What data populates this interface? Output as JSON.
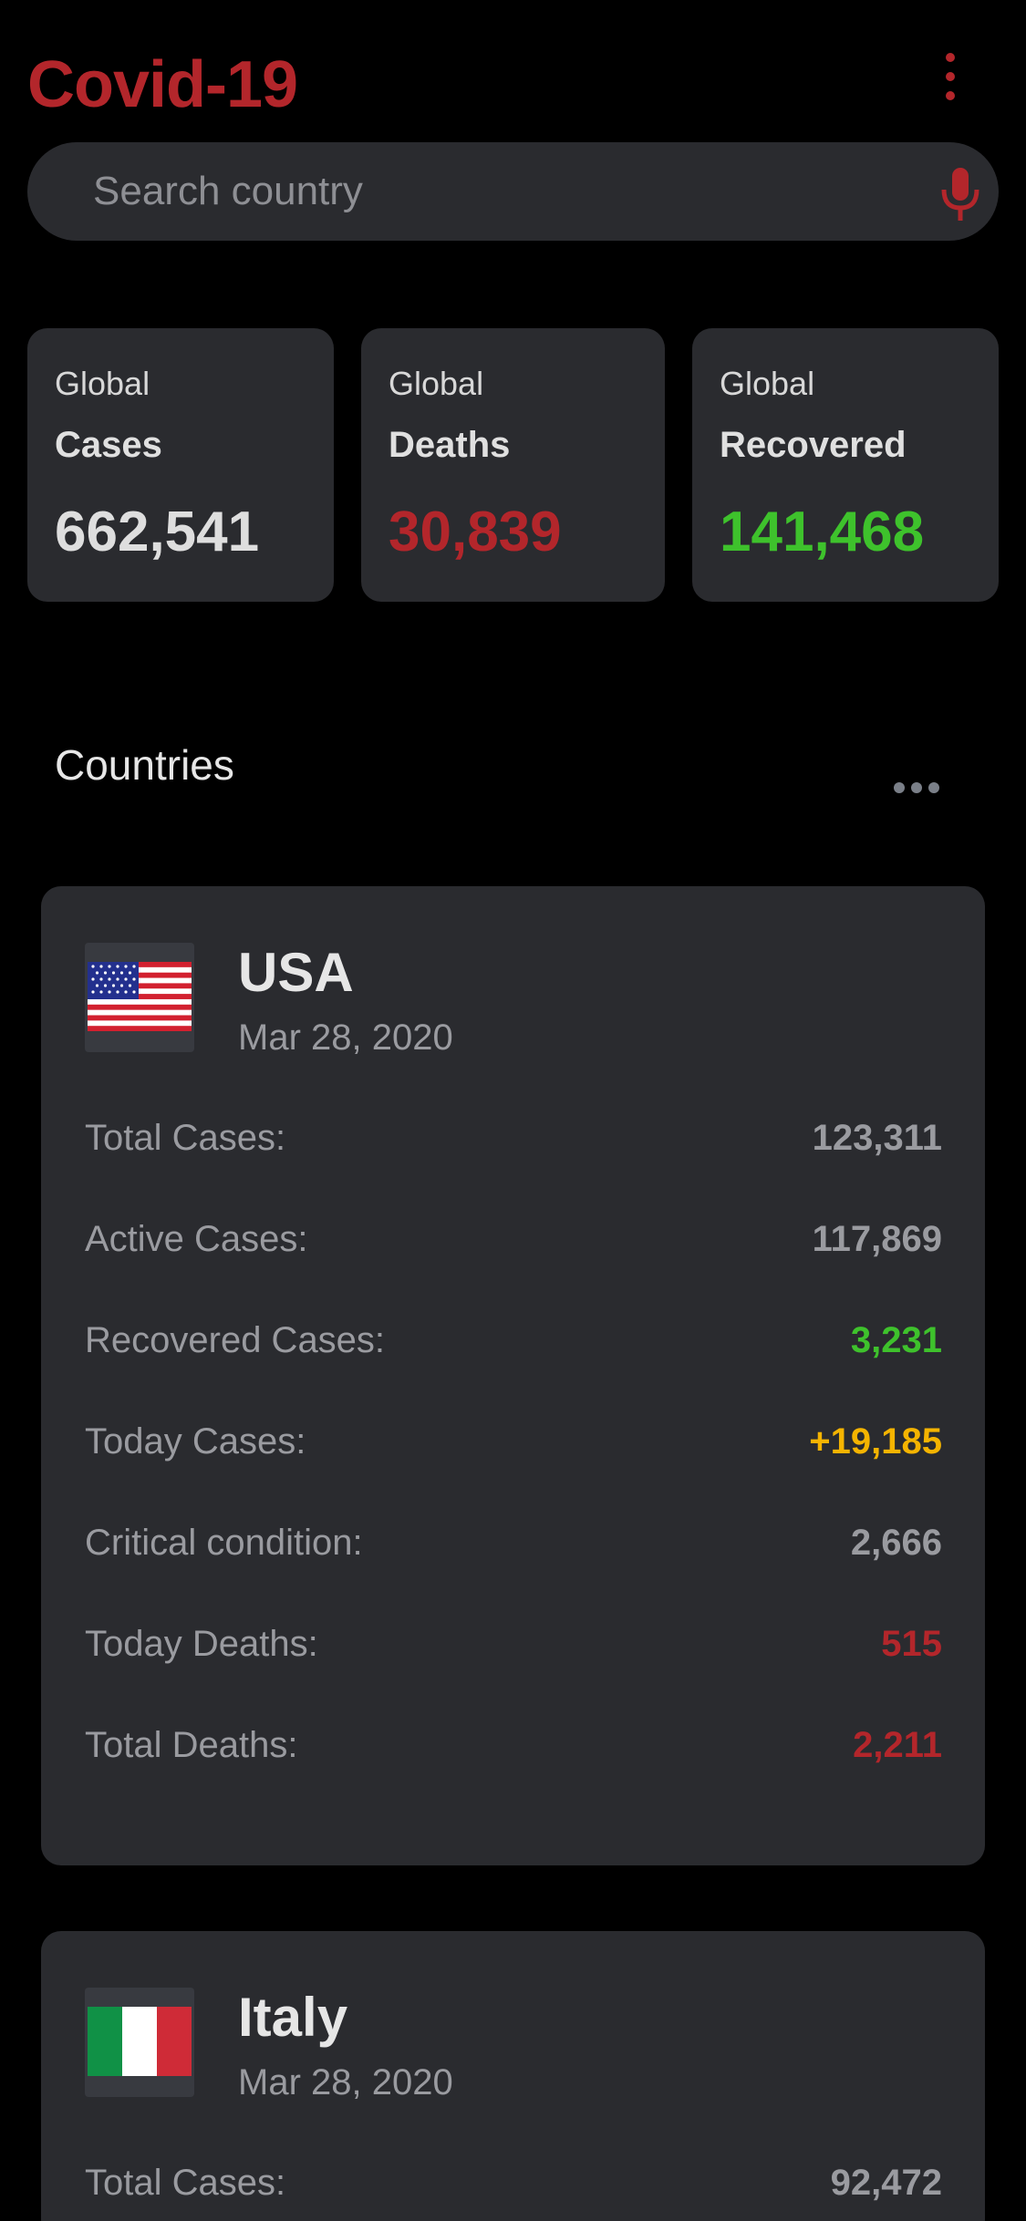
{
  "app": {
    "title": "Covid-19"
  },
  "search": {
    "placeholder": "Search country"
  },
  "global": {
    "cases": {
      "label1": "Global",
      "label2": "Cases",
      "value": "662,541"
    },
    "deaths": {
      "label1": "Global",
      "label2": "Deaths",
      "value": "30,839"
    },
    "recovered": {
      "label1": "Global",
      "label2": "Recovered",
      "value": "141,468"
    }
  },
  "countries_section": {
    "title": "Countries"
  },
  "colors": {
    "accent_red": "#b3262b",
    "green": "#3ec22c",
    "yellow": "#f5b400",
    "muted": "#9a9ba0",
    "card_bg": "#2a2b2f"
  },
  "icons": {
    "menu": "more-vert-icon",
    "mic": "microphone-icon",
    "more": "more-horiz-icon"
  },
  "countries": [
    {
      "name": "USA",
      "date": "Mar 28, 2020",
      "flag": "usa-flag",
      "rows": [
        {
          "label": "Total Cases:",
          "value": "123,311"
        },
        {
          "label": "Active Cases:",
          "value": "117,869"
        },
        {
          "label": "Recovered Cases:",
          "value": "3,231"
        },
        {
          "label": "Today Cases:",
          "value": "+19,185"
        },
        {
          "label": "Critical condition:",
          "value": "2,666"
        },
        {
          "label": "Today Deaths:",
          "value": "515"
        },
        {
          "label": "Total Deaths:",
          "value": "2,211"
        }
      ]
    },
    {
      "name": "Italy",
      "date": "Mar 28, 2020",
      "flag": "italy-flag",
      "rows": [
        {
          "label": "Total Cases:",
          "value": "92,472"
        }
      ]
    }
  ]
}
